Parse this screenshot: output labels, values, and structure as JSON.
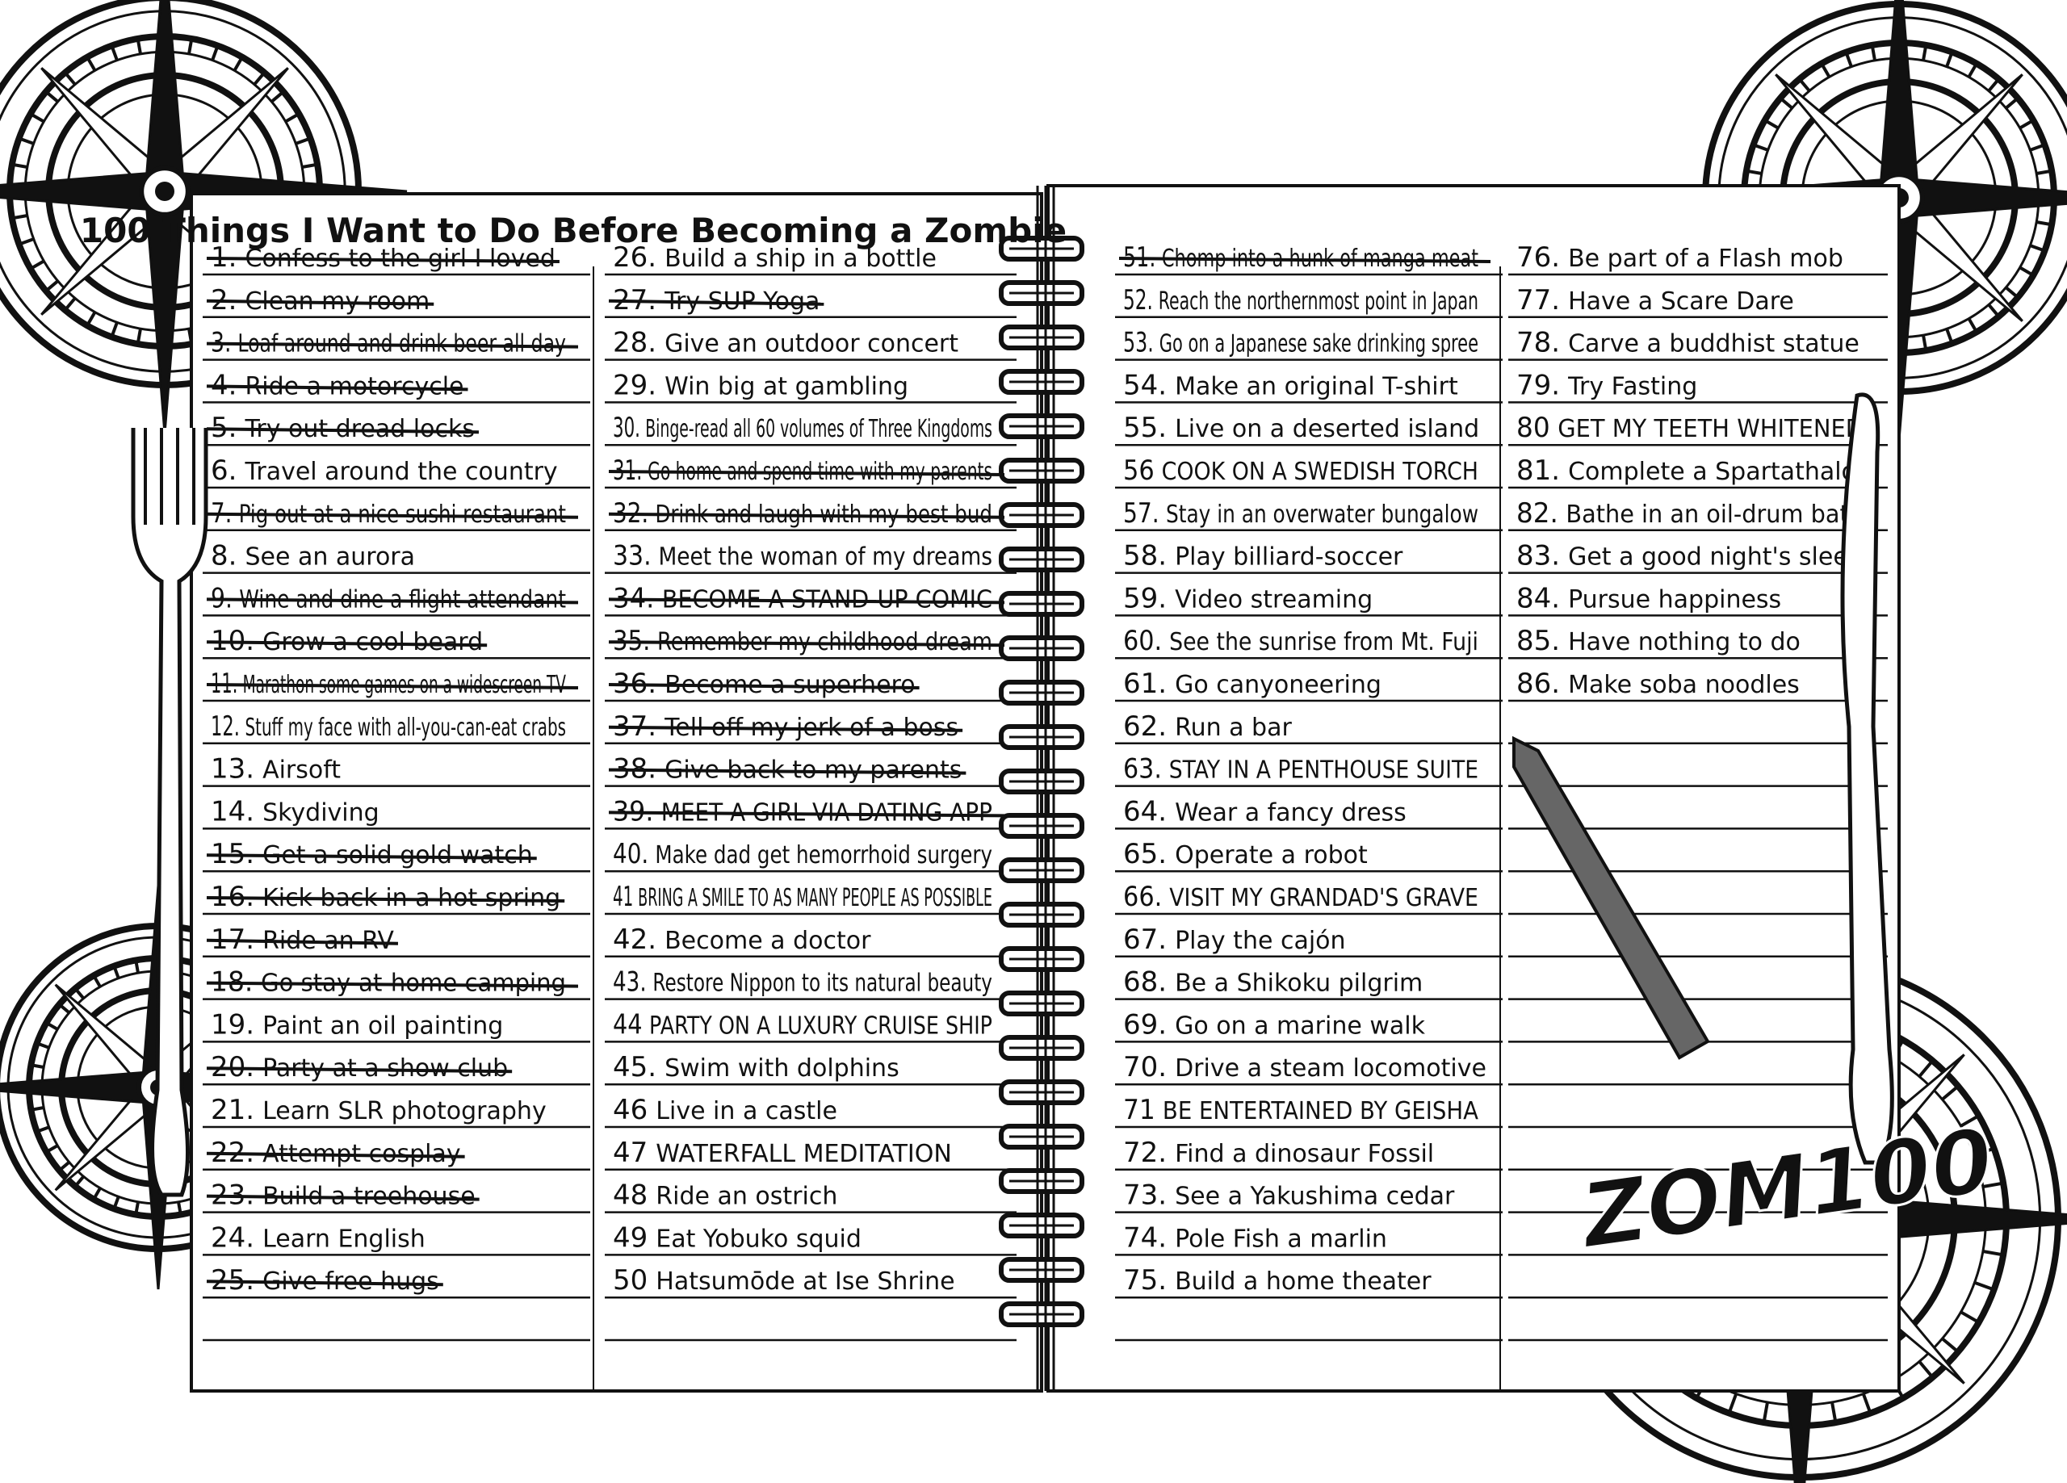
{
  "title": "100 Things I Want to Do Before Becoming a Zombie",
  "logo": "ZOM100",
  "items": [
    {
      "number": "1.",
      "text": "Confess to the girl I loved",
      "crossed": true
    },
    {
      "number": "2.",
      "text": "Clean my room",
      "crossed": true
    },
    {
      "number": "3.",
      "text": "Loaf around and drink beer all day",
      "crossed": true
    },
    {
      "number": "4.",
      "text": "Ride a motorcycle",
      "crossed": true
    },
    {
      "number": "5.",
      "text": "Try out dread locks",
      "crossed": true
    },
    {
      "number": "6.",
      "text": "Travel around the country",
      "crossed": false
    },
    {
      "number": "7.",
      "text": "Pig out at a nice sushi restaurant",
      "crossed": true
    },
    {
      "number": "8.",
      "text": "See an aurora",
      "crossed": false
    },
    {
      "number": "9.",
      "text": "Wine and dine a flight attendant",
      "crossed": true
    },
    {
      "number": "10.",
      "text": "Grow a cool beard",
      "crossed": true
    },
    {
      "number": "11.",
      "text": "Marathon some games on a widescreen TV",
      "crossed": true
    },
    {
      "number": "12.",
      "text": "Stuff my face with all-you-can-eat crabs",
      "crossed": false
    },
    {
      "number": "13.",
      "text": "Airsoft",
      "crossed": false
    },
    {
      "number": "14.",
      "text": "Skydiving",
      "crossed": false
    },
    {
      "number": "15.",
      "text": "Get a solid gold watch",
      "crossed": true
    },
    {
      "number": "16.",
      "text": "Kick back in a hot spring",
      "crossed": true
    },
    {
      "number": "17.",
      "text": "Ride an RV",
      "crossed": true
    },
    {
      "number": "18.",
      "text": "Go stay-at-home camping",
      "crossed": true
    },
    {
      "number": "19.",
      "text": "Paint an oil painting",
      "crossed": false
    },
    {
      "number": "20.",
      "text": "Party at a show club",
      "crossed": true
    },
    {
      "number": "21.",
      "text": "Learn SLR photography",
      "crossed": false
    },
    {
      "number": "22.",
      "text": "Attempt cosplay",
      "crossed": true
    },
    {
      "number": "23.",
      "text": "Build a treehouse",
      "crossed": true
    },
    {
      "number": "24.",
      "text": "Learn English",
      "crossed": false
    },
    {
      "number": "25.",
      "text": "Give free hugs",
      "crossed": true
    },
    {
      "number": "26.",
      "text": "Build a ship in a bottle",
      "crossed": false
    },
    {
      "number": "27.",
      "text": "Try SUP Yoga",
      "crossed": true
    },
    {
      "number": "28.",
      "text": "Give an outdoor concert",
      "crossed": false
    },
    {
      "number": "29.",
      "text": "Win big at gambling",
      "crossed": false
    },
    {
      "number": "30.",
      "text": "Binge-read all 60 volumes of Three Kingdoms",
      "crossed": false
    },
    {
      "number": "31.",
      "text": "Go home and spend time with my parents",
      "crossed": true
    },
    {
      "number": "32.",
      "text": "Drink and laugh with my best bud",
      "crossed": true
    },
    {
      "number": "33.",
      "text": "Meet the woman of my dreams",
      "crossed": false
    },
    {
      "number": "34.",
      "text": "BECOME A STAND-UP COMIC",
      "crossed": true
    },
    {
      "number": "35.",
      "text": "Remember my childhood dream",
      "crossed": true
    },
    {
      "number": "36.",
      "text": "Become a superhero",
      "crossed": true
    },
    {
      "number": "37.",
      "text": "Tell off my jerk of a boss",
      "crossed": true
    },
    {
      "number": "38.",
      "text": "Give back to my parents",
      "crossed": true
    },
    {
      "number": "39.",
      "text": "MEET A GIRL VIA DATING APP",
      "crossed": true
    },
    {
      "number": "40.",
      "text": "Make dad get hemorrhoid surgery",
      "crossed": false
    },
    {
      "number": "41",
      "text": "BRING A SMILE TO AS MANY PEOPLE AS POSSIBLE",
      "crossed": false
    },
    {
      "number": "42.",
      "text": "Become a doctor",
      "crossed": false
    },
    {
      "number": "43.",
      "text": "Restore Nippon to its natural beauty",
      "crossed": false
    },
    {
      "number": "44",
      "text": "PARTY ON A LUXURY CRUISE SHIP",
      "crossed": false
    },
    {
      "number": "45.",
      "text": "Swim with dolphins",
      "crossed": false
    },
    {
      "number": "46",
      "text": "Live in a castle",
      "crossed": false
    },
    {
      "number": "47",
      "text": "WATERFALL MEDITATION",
      "crossed": false
    },
    {
      "number": "48",
      "text": "Ride an ostrich",
      "crossed": false
    },
    {
      "number": "49",
      "text": "Eat Yobuko squid",
      "crossed": false
    },
    {
      "number": "50",
      "text": "Hatsumōde at Ise Shrine",
      "crossed": false
    },
    {
      "number": "51.",
      "text": "Chomp into a hunk of manga meat",
      "crossed": true
    },
    {
      "number": "52.",
      "text": "Reach the northernmost point in Japan",
      "crossed": false
    },
    {
      "number": "53.",
      "text": "Go on a Japanese sake drinking spree",
      "crossed": false
    },
    {
      "number": "54.",
      "text": "Make an original T-shirt",
      "crossed": false
    },
    {
      "number": "55.",
      "text": "Live on a deserted island",
      "crossed": false
    },
    {
      "number": "56",
      "text": "COOK ON A SWEDISH TORCH",
      "crossed": false
    },
    {
      "number": "57.",
      "text": "Stay in an overwater bungalow",
      "crossed": false
    },
    {
      "number": "58.",
      "text": "Play billiard-soccer",
      "crossed": false
    },
    {
      "number": "59.",
      "text": "Video streaming",
      "crossed": false
    },
    {
      "number": "60.",
      "text": "See the sunrise from Mt. Fuji",
      "crossed": false
    },
    {
      "number": "61.",
      "text": "Go canyoneering",
      "crossed": false
    },
    {
      "number": "62.",
      "text": "Run a bar",
      "crossed": false
    },
    {
      "number": "63.",
      "text": "STAY IN A PENTHOUSE SUITE",
      "crossed": false
    },
    {
      "number": "64.",
      "text": "Wear a fancy dress",
      "crossed": false
    },
    {
      "number": "65.",
      "text": "Operate a robot",
      "crossed": false
    },
    {
      "number": "66.",
      "text": "VISIT MY GRANDAD'S GRAVE",
      "crossed": false
    },
    {
      "number": "67.",
      "text": "Play the cajón",
      "crossed": false
    },
    {
      "number": "68.",
      "text": "Be a Shikoku pilgrim",
      "crossed": false
    },
    {
      "number": "69.",
      "text": "Go on a marine walk",
      "crossed": false
    },
    {
      "number": "70.",
      "text": "Drive a steam locomotive",
      "crossed": false
    },
    {
      "number": "71",
      "text": "BE ENTERTAINED BY GEISHA",
      "crossed": false
    },
    {
      "number": "72.",
      "text": "Find a dinosaur Fossil",
      "crossed": false
    },
    {
      "number": "73.",
      "text": "See a Yakushima cedar",
      "crossed": false
    },
    {
      "number": "74.",
      "text": "Pole Fish a marlin",
      "crossed": false
    },
    {
      "number": "75.",
      "text": "Build a home theater",
      "crossed": false
    },
    {
      "number": "76.",
      "text": "Be part of a Flash mob",
      "crossed": false
    },
    {
      "number": "77.",
      "text": "Have a Scare Dare",
      "crossed": false
    },
    {
      "number": "78.",
      "text": "Carve a buddhist statue",
      "crossed": false
    },
    {
      "number": "79.",
      "text": "Try Fasting",
      "crossed": false
    },
    {
      "number": "80",
      "text": "GET MY TEETH WHITENED",
      "crossed": false
    },
    {
      "number": "81.",
      "text": "Complete a Spartathalon",
      "crossed": false
    },
    {
      "number": "82.",
      "text": "Bathe in an oil-drum bath",
      "crossed": false
    },
    {
      "number": "83.",
      "text": "Get a good night's sleep",
      "crossed": false
    },
    {
      "number": "84.",
      "text": "Pursue happiness",
      "crossed": false
    },
    {
      "number": "85.",
      "text": "Have nothing to do",
      "crossed": false
    },
    {
      "number": "86.",
      "text": "Make soba noodles",
      "crossed": false
    }
  ]
}
